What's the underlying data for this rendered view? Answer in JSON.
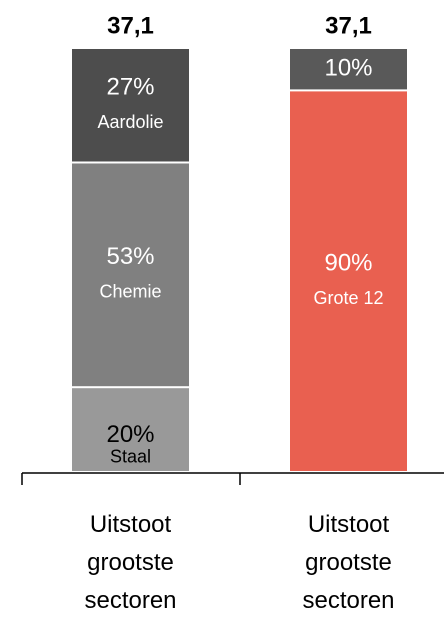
{
  "chart_data": {
    "type": "stacked_bar",
    "ylim": [
      0,
      100
    ],
    "bars": [
      {
        "category": "Uitstoot grootste sectoren",
        "total": 37.1,
        "total_label": "37,1",
        "segments": [
          {
            "name": "Staal",
            "value": 20,
            "value_label": "20%",
            "color": "#999999",
            "text_color": "#000000"
          },
          {
            "name": "Chemie",
            "value": 53,
            "value_label": "53%",
            "color": "#808080",
            "text_color": "#ffffff"
          },
          {
            "name": "Aardolie",
            "value": 27,
            "value_label": "27%",
            "color": "#4d4d4d",
            "text_color": "#ffffff"
          }
        ]
      },
      {
        "category": "Uitstoot grootste sectoren",
        "total": 37.1,
        "total_label": "37,1",
        "segments": [
          {
            "name": "Grote 12",
            "value": 90,
            "value_label": "90%",
            "color": "#e96050",
            "text_color": "#ffffff"
          },
          {
            "value": 10,
            "value_label": "10%",
            "color": "#595959",
            "text_color": "#ffffff"
          }
        ]
      }
    ]
  }
}
